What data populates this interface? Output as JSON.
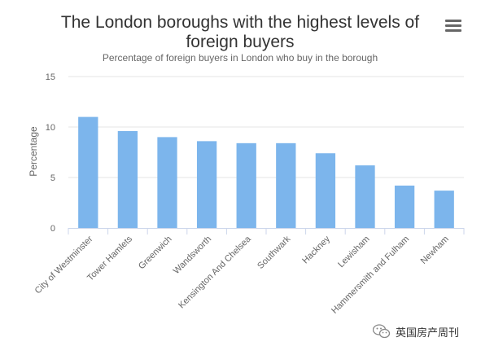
{
  "chart_data": {
    "type": "bar",
    "title": "The London boroughs with the highest levels of foreign buyers",
    "subtitle": "Percentage of foreign buyers in London who buy in the borough",
    "xlabel": "",
    "ylabel": "Percentage",
    "ylim": [
      0,
      15
    ],
    "yticks": [
      "0",
      "5",
      "10",
      "15"
    ],
    "grid": true,
    "categories": [
      "City of Westminster",
      "Tower Hamlets",
      "Greenwich",
      "Wandsworth",
      "Kensington And Chelsea",
      "Southwark",
      "Hackney",
      "Lewisham",
      "Hammersmith and Fulham",
      "Newham"
    ],
    "values": [
      11.0,
      9.6,
      9.0,
      8.6,
      8.4,
      8.4,
      7.4,
      6.2,
      4.2,
      3.7
    ],
    "bar_color": "#7cb5ec"
  },
  "menu_icon": "hamburger-menu-icon",
  "watermark": {
    "text": "英国房产周刊",
    "icon": "wechat-icon"
  }
}
